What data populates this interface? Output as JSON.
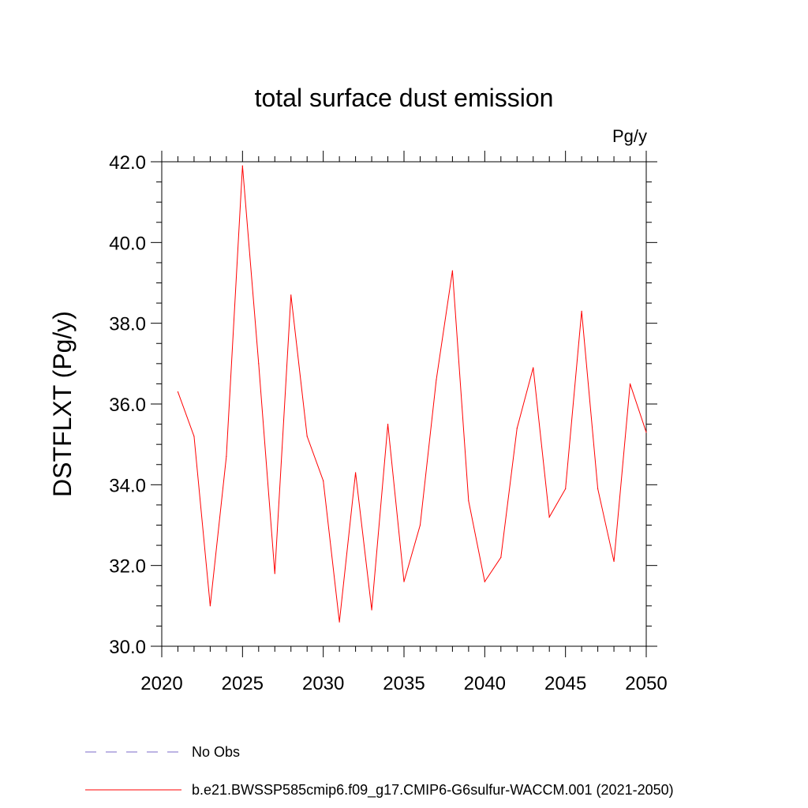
{
  "chart_data": {
    "type": "line",
    "title": "total surface dust emission",
    "units_label": "Pg/y",
    "xlabel": "",
    "ylabel": "DSTFLXT  (Pg/y)",
    "xlim": [
      2020,
      2050
    ],
    "ylim": [
      30.0,
      42.0
    ],
    "x_ticks": [
      "2020",
      "2025",
      "2030",
      "2035",
      "2040",
      "2045",
      "2050"
    ],
    "y_ticks": [
      "30.0",
      "32.0",
      "34.0",
      "36.0",
      "38.0",
      "40.0",
      "42.0"
    ],
    "grid": false,
    "legend_position": "bottom",
    "x": [
      2021,
      2022,
      2023,
      2024,
      2025,
      2026,
      2027,
      2028,
      2029,
      2030,
      2031,
      2032,
      2033,
      2034,
      2035,
      2036,
      2037,
      2038,
      2039,
      2040,
      2041,
      2042,
      2043,
      2044,
      2045,
      2046,
      2047,
      2048,
      2049,
      2050
    ],
    "series": [
      {
        "name": "b.e21.BWSSP585cmip6.f09_g17.CMIP6-G6sulfur-WACCM.001 (2021-2050)",
        "color": "#ff0000",
        "style": "solid",
        "values": [
          36.3,
          35.2,
          31.0,
          34.7,
          41.9,
          37.0,
          31.8,
          38.7,
          35.2,
          34.1,
          30.6,
          34.3,
          30.9,
          35.5,
          31.6,
          33.0,
          36.6,
          39.3,
          33.6,
          31.6,
          32.2,
          35.4,
          36.9,
          33.2,
          33.9,
          38.3,
          33.9,
          32.1,
          36.5,
          35.3
        ]
      }
    ],
    "legend": [
      {
        "label": "No Obs",
        "color": "#7b68c8",
        "style": "dashed"
      },
      {
        "label": "b.e21.BWSSP585cmip6.f09_g17.CMIP6-G6sulfur-WACCM.001 (2021-2050)",
        "color": "#ff0000",
        "style": "solid"
      }
    ]
  }
}
